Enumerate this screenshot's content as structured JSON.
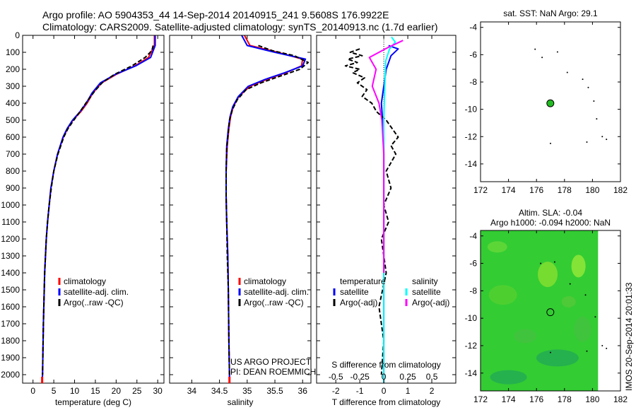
{
  "header": {
    "line1": "Argo profile: AO 5904353_44 14-Sep-2014 20140915_241 9.5608S 176.9922E",
    "line2": "Climatology: CARS2009. Satellite-adjusted climatology: synTS_20140913.nc (1.7d earlier)"
  },
  "footer_stamp": "IMOS 20-Sep-2014 20:01:33",
  "project_credit": {
    "line1": "US ARGO PROJECT",
    "line2": "PI: DEAN ROEMMICH"
  },
  "colors": {
    "climatology": "#ff0000",
    "satellite": "#0000ff",
    "argo": "#000000",
    "cyan": "#00ffff",
    "magenta": "#ff00ff",
    "map_point": "#22bb22",
    "sla_field": "#33cc33"
  },
  "chart_data": [
    {
      "id": "temperature",
      "type": "line",
      "xlabel": "temperature (deg C)",
      "ylabel": "",
      "xlim": [
        -2.5,
        31.5
      ],
      "ylim": [
        0,
        2050
      ],
      "y_reversed": true,
      "xticks": [
        0,
        5,
        10,
        15,
        20,
        25,
        30
      ],
      "yticks": [
        0,
        100,
        200,
        300,
        400,
        500,
        600,
        700,
        800,
        900,
        1000,
        1100,
        1200,
        1300,
        1400,
        1500,
        1600,
        1700,
        1800,
        1900,
        2000
      ],
      "legend": [
        "climatology",
        "satellite-adj. clim.",
        "Argo(..raw -QC)"
      ],
      "series": [
        {
          "name": "climatology",
          "color": "#ff0000",
          "x": [
            29.2,
            29.2,
            27.8,
            24.5,
            20,
            16.5,
            14.4,
            13,
            11.5,
            9.6,
            8.3,
            7.3,
            5.9,
            5,
            4.3,
            3.9,
            3.5,
            3.2,
            2.8,
            2.5,
            2.3,
            2.2
          ],
          "y": [
            0,
            60,
            130,
            180,
            230,
            280,
            340,
            400,
            450,
            500,
            550,
            600,
            700,
            800,
            900,
            1000,
            1100,
            1200,
            1400,
            1700,
            2000,
            2050
          ]
        },
        {
          "name": "satellite-adj. clim.",
          "color": "#0000ff",
          "x": [
            29.4,
            29.4,
            28.3,
            24.7,
            19.8,
            16.2,
            14.2,
            12.8,
            11.3,
            9.5,
            8.2,
            7.2,
            5.9,
            5,
            4.3,
            3.9,
            3.5,
            3.2,
            2.8,
            2.5,
            2.3,
            2.2
          ],
          "y": [
            0,
            60,
            130,
            180,
            230,
            280,
            340,
            400,
            450,
            500,
            550,
            600,
            700,
            800,
            900,
            1000,
            1100,
            1200,
            1400,
            1700,
            2000,
            2050
          ]
        },
        {
          "name": "Argo(..raw -QC)",
          "color": "#000000",
          "x": [
            28.9,
            28.6,
            27,
            23.8,
            19.6,
            16.6,
            14.8,
            12.7,
            11.3,
            9.8,
            8.4,
            7.4,
            6,
            5,
            4.4,
            3.9,
            3.5,
            3.2,
            2.8,
            2.5,
            2.3
          ],
          "y": [
            60,
            90,
            130,
            180,
            230,
            280,
            330,
            400,
            450,
            500,
            550,
            600,
            700,
            800,
            900,
            1000,
            1100,
            1200,
            1400,
            1700,
            2000
          ]
        }
      ]
    },
    {
      "id": "salinity",
      "type": "line",
      "xlabel": "salinity",
      "xlim": [
        33.6,
        36.15
      ],
      "ylim": [
        0,
        2050
      ],
      "y_reversed": true,
      "xticks": [
        34,
        34.5,
        35,
        35.5,
        36
      ],
      "xticklabels": [
        "34",
        "34.5",
        "35",
        "35.5",
        "36"
      ],
      "legend": [
        "climatology",
        "satellite-adj. clim.",
        "Argo(..raw -QC)"
      ],
      "series": [
        {
          "name": "climatology",
          "color": "#ff0000",
          "x": [
            34.95,
            35.05,
            35.55,
            36.0,
            35.98,
            35.7,
            35.35,
            35.05,
            34.85,
            34.75,
            34.7,
            34.67,
            34.64,
            34.62,
            34.62,
            34.63,
            34.65,
            34.66,
            34.67,
            34.68,
            34.68
          ],
          "y": [
            0,
            60,
            100,
            140,
            180,
            220,
            260,
            300,
            360,
            420,
            480,
            550,
            650,
            800,
            950,
            1100,
            1300,
            1500,
            1800,
            2000,
            2050
          ]
        },
        {
          "name": "satellite-adj. clim.",
          "color": "#0000ff",
          "x": [
            34.9,
            35.0,
            35.5,
            36.05,
            36.0,
            35.68,
            35.32,
            35.02,
            34.84,
            34.74,
            34.69,
            34.66,
            34.63,
            34.62,
            34.62,
            34.63,
            34.65,
            34.66,
            34.67,
            34.68,
            34.68
          ],
          "y": [
            0,
            60,
            100,
            140,
            180,
            220,
            260,
            300,
            360,
            420,
            480,
            550,
            650,
            800,
            950,
            1100,
            1300,
            1500,
            1800,
            2000,
            2050
          ]
        },
        {
          "name": "Argo(..raw -QC)",
          "color": "#000000",
          "x": [
            35.2,
            35.45,
            35.85,
            36.1,
            35.95,
            35.6,
            35.25,
            34.98,
            34.82,
            34.73,
            34.68,
            34.66,
            34.63,
            34.62,
            34.62,
            34.63,
            34.64,
            34.66,
            34.67,
            34.68
          ],
          "y": [
            60,
            90,
            120,
            160,
            200,
            240,
            280,
            320,
            380,
            440,
            500,
            570,
            670,
            800,
            950,
            1100,
            1300,
            1500,
            1800,
            2000
          ]
        }
      ]
    },
    {
      "id": "difference",
      "type": "line",
      "xlabel": "T difference from climatology",
      "top_axis_label": "S difference from climatology",
      "xlim": [
        -2.8,
        3.0
      ],
      "ylim": [
        0,
        2050
      ],
      "y_reversed": true,
      "xticks": [
        -2,
        -1,
        0,
        1,
        2
      ],
      "top_ticks": [
        -0.5,
        -0.25,
        0,
        0.25,
        0.5
      ],
      "top_ticklabels": [
        "-0.5",
        "-0.25",
        "0",
        "0.25",
        "0.5"
      ],
      "s_scale": 4,
      "legend_temperature": {
        "title": "temperature",
        "items": [
          "satellite",
          "Argo(-adj)"
        ]
      },
      "legend_salinity": {
        "title": "salinity",
        "items": [
          "satellite",
          "Argo(-adj)"
        ]
      },
      "series": [
        {
          "name": "T satellite",
          "color": "#0000ff",
          "x": [
            0.2,
            0.6,
            0.3,
            0.1,
            -0.1,
            0,
            0,
            0,
            0,
            0,
            0
          ],
          "y": [
            60,
            80,
            120,
            200,
            400,
            600,
            800,
            1000,
            1300,
            1700,
            2050
          ]
        },
        {
          "name": "T Argo(-adj)",
          "color": "#000000",
          "dashed": true,
          "x": [
            -1.0,
            -1.4,
            -0.9,
            -1.5,
            -1.1,
            -1.6,
            -1.0,
            -1.3,
            -0.8,
            -1.1,
            -0.7,
            -0.9,
            -0.5,
            -0.3,
            0.1,
            0.6,
            0.3,
            0.5,
            0.1,
            0.3,
            0,
            0.2,
            -0.1,
            0.1,
            -0.2,
            0,
            -0.1
          ],
          "y": [
            80,
            100,
            120,
            140,
            160,
            180,
            200,
            220,
            250,
            280,
            320,
            360,
            400,
            450,
            500,
            600,
            650,
            700,
            800,
            900,
            1000,
            1100,
            1200,
            1400,
            1600,
            1800,
            2000
          ]
        },
        {
          "name": "S satellite",
          "color": "#00ffff",
          "x": [
            0.08,
            0.12,
            0.06,
            0.02,
            0.01,
            0,
            0,
            0,
            0,
            0
          ],
          "y": [
            10,
            40,
            80,
            150,
            300,
            500,
            800,
            1200,
            1600,
            2050
          ]
        },
        {
          "name": "S Argo(-adj)",
          "color": "#ff00ff",
          "x": [
            0.2,
            0.05,
            -0.15,
            -0.08,
            -0.12,
            -0.05,
            -0.02,
            0,
            0,
            0
          ],
          "y": [
            30,
            70,
            130,
            200,
            300,
            400,
            500,
            700,
            1000,
            1400
          ]
        }
      ]
    },
    {
      "id": "sst_map",
      "type": "scatter",
      "title": "sat. SST: NaN Argo: 29.1",
      "xlim": [
        172,
        182
      ],
      "ylim": [
        -15.3,
        -3.6
      ],
      "xticks": [
        172,
        174,
        176,
        178,
        180,
        182
      ],
      "yticks": [
        -4,
        -6,
        -8,
        -10,
        -12,
        -14
      ],
      "argo_position": [
        176.99,
        -9.56
      ],
      "track": [
        [
          175.9,
          -5.6
        ],
        [
          176.4,
          -6.2
        ],
        [
          177.5,
          -5.8
        ],
        [
          178.2,
          -7.3
        ],
        [
          179.3,
          -7.8
        ],
        [
          179.7,
          -8.4
        ],
        [
          180.1,
          -9.4
        ],
        [
          180.3,
          -10.7
        ],
        [
          179.6,
          -12.4
        ],
        [
          177.0,
          -12.5
        ],
        [
          180.7,
          -12.0
        ],
        [
          181.0,
          -12.2
        ]
      ]
    },
    {
      "id": "sla_map",
      "type": "heatmap",
      "title_line1": "Altim. SLA: -0.04",
      "title_line2": "Argo h1000: -0.094 h2000: NaN",
      "xlim": [
        172,
        182
      ],
      "ylim": [
        -15.3,
        -3.6
      ],
      "xticks": [
        172,
        174,
        176,
        178,
        180,
        182
      ],
      "yticks": [
        -4,
        -6,
        -8,
        -10,
        -12,
        -14
      ],
      "field_extent": [
        172,
        180.4
      ],
      "argo_position": [
        176.99,
        -9.56
      ],
      "track": [
        [
          176.3,
          -6.0
        ],
        [
          177.3,
          -5.9
        ],
        [
          178.4,
          -7.5
        ],
        [
          179.5,
          -8.3
        ],
        [
          180.2,
          -9.9
        ],
        [
          179.6,
          -12.4
        ],
        [
          177.0,
          -12.5
        ],
        [
          180.7,
          -12.0
        ],
        [
          181.0,
          -12.2
        ]
      ]
    }
  ]
}
